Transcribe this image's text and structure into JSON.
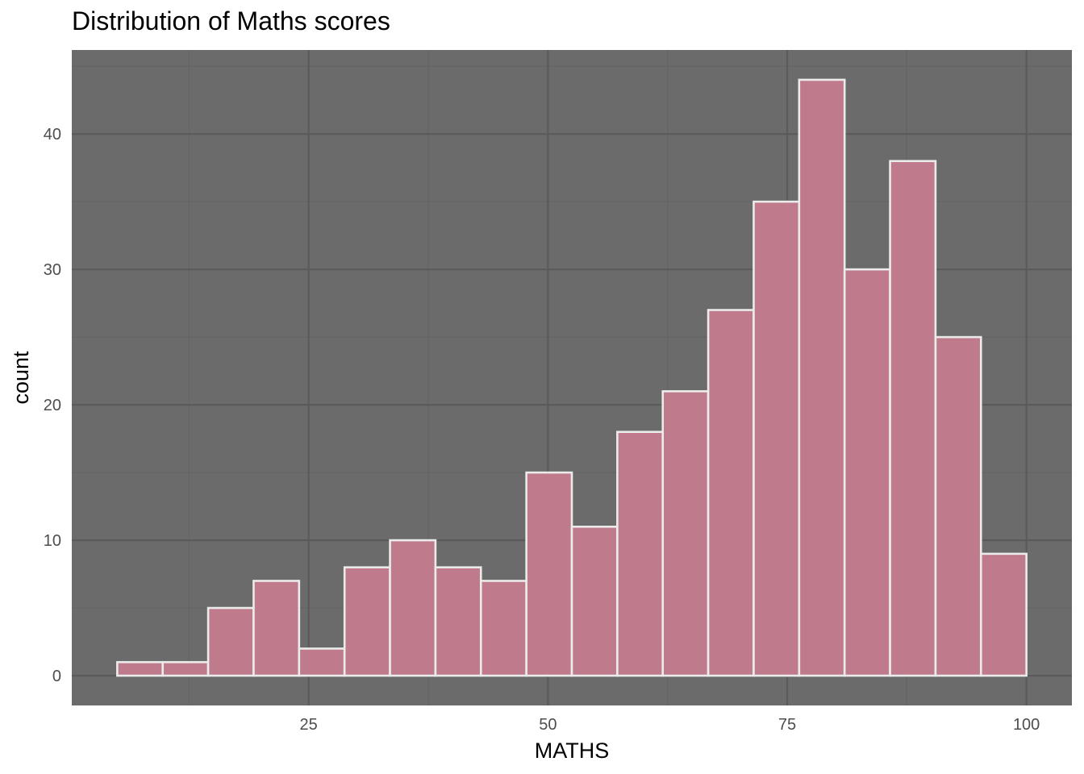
{
  "chart_data": {
    "type": "bar",
    "title": "Distribution of Maths scores",
    "xlabel": "MATHS",
    "ylabel": "count",
    "bins": [
      {
        "x0": 5.0,
        "x1": 9.75,
        "count": 1
      },
      {
        "x0": 9.75,
        "x1": 14.5,
        "count": 1
      },
      {
        "x0": 14.5,
        "x1": 19.25,
        "count": 5
      },
      {
        "x0": 19.25,
        "x1": 24.0,
        "count": 7
      },
      {
        "x0": 24.0,
        "x1": 28.75,
        "count": 2
      },
      {
        "x0": 28.75,
        "x1": 33.5,
        "count": 8
      },
      {
        "x0": 33.5,
        "x1": 38.25,
        "count": 10
      },
      {
        "x0": 38.25,
        "x1": 43.0,
        "count": 8
      },
      {
        "x0": 43.0,
        "x1": 47.75,
        "count": 7
      },
      {
        "x0": 47.75,
        "x1": 52.5,
        "count": 15
      },
      {
        "x0": 52.5,
        "x1": 57.25,
        "count": 11
      },
      {
        "x0": 57.25,
        "x1": 62.0,
        "count": 18
      },
      {
        "x0": 62.0,
        "x1": 66.75,
        "count": 21
      },
      {
        "x0": 66.75,
        "x1": 71.5,
        "count": 27
      },
      {
        "x0": 71.5,
        "x1": 76.25,
        "count": 35
      },
      {
        "x0": 76.25,
        "x1": 81.0,
        "count": 44
      },
      {
        "x0": 81.0,
        "x1": 85.75,
        "count": 30
      },
      {
        "x0": 85.75,
        "x1": 90.5,
        "count": 38
      },
      {
        "x0": 90.5,
        "x1": 95.25,
        "count": 25
      },
      {
        "x0": 95.25,
        "x1": 100.0,
        "count": 9
      }
    ],
    "xlim": [
      0.25,
      104.75
    ],
    "ylim": [
      -2.2,
      46.2
    ],
    "x_ticks": [
      25,
      50,
      75,
      100
    ],
    "y_ticks": [
      0,
      10,
      20,
      30,
      40
    ],
    "grid": true,
    "legend": "none",
    "colors": {
      "panel_background": "#6b6b6b",
      "grid_major": "#5a5a5a",
      "grid_minor": "#636363",
      "bar_fill": "#bf7b8b",
      "bar_outline": "#ebebeb",
      "tick_label": "#4d4d4d",
      "axis_title": "#000000"
    }
  }
}
